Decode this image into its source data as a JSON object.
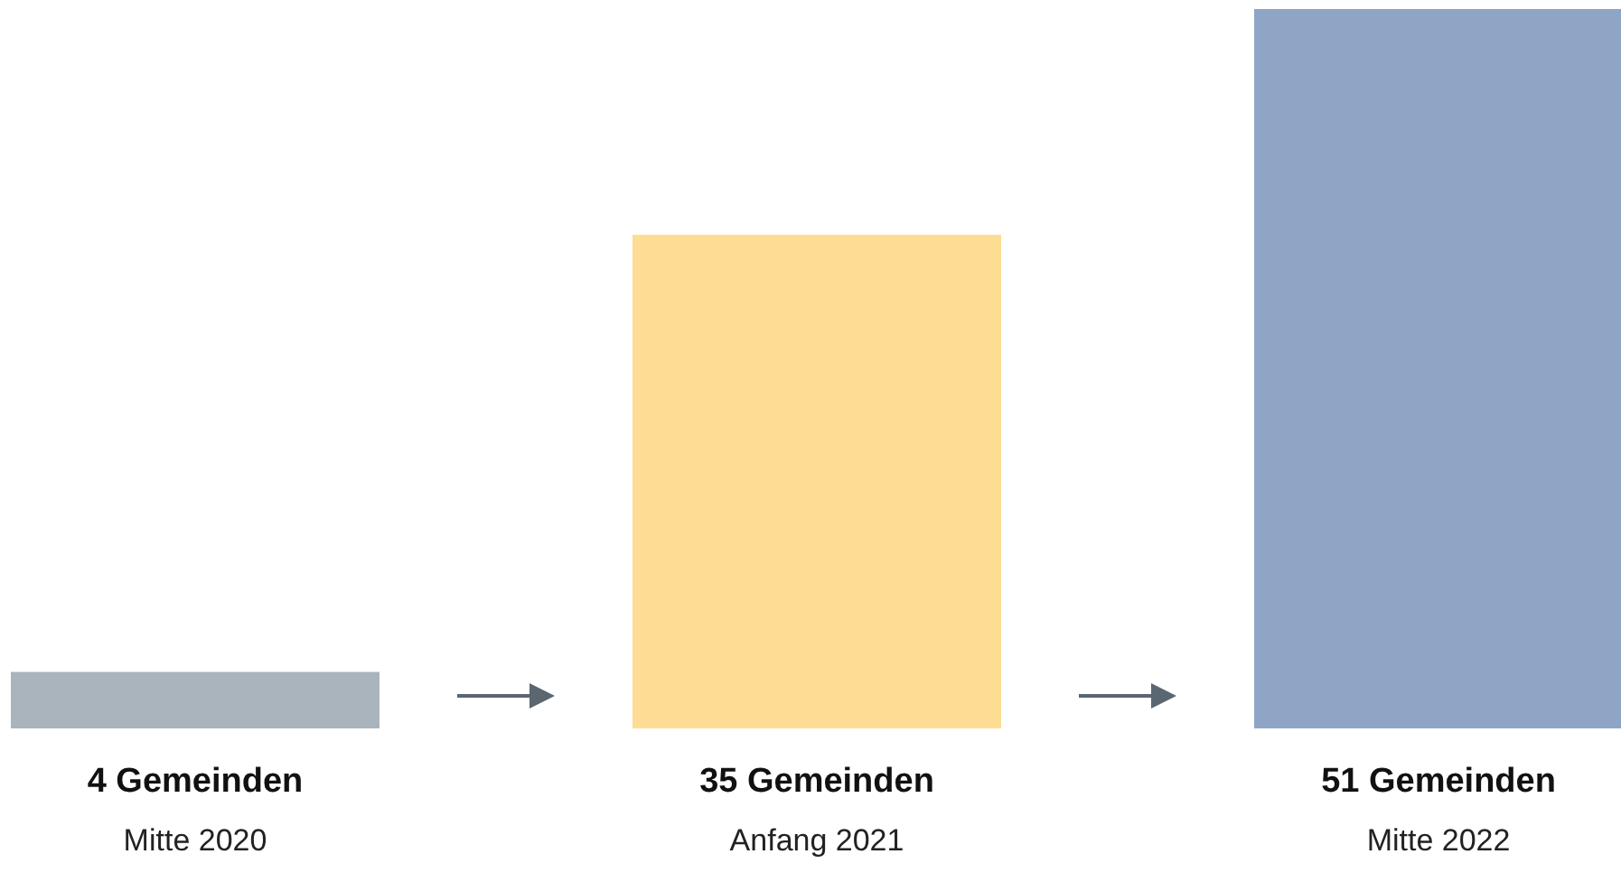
{
  "chart_data": {
    "type": "bar",
    "categories": [
      "Mitte 2020",
      "Anfang 2021",
      "Mitte 2022"
    ],
    "values": [
      4,
      35,
      51
    ],
    "colors": [
      "#a9b4bc",
      "#fddc93",
      "#8fa5c6"
    ],
    "value_labels": [
      "4 Gemeinden",
      "35 Gemeinden",
      "51 Gemeinden"
    ]
  }
}
